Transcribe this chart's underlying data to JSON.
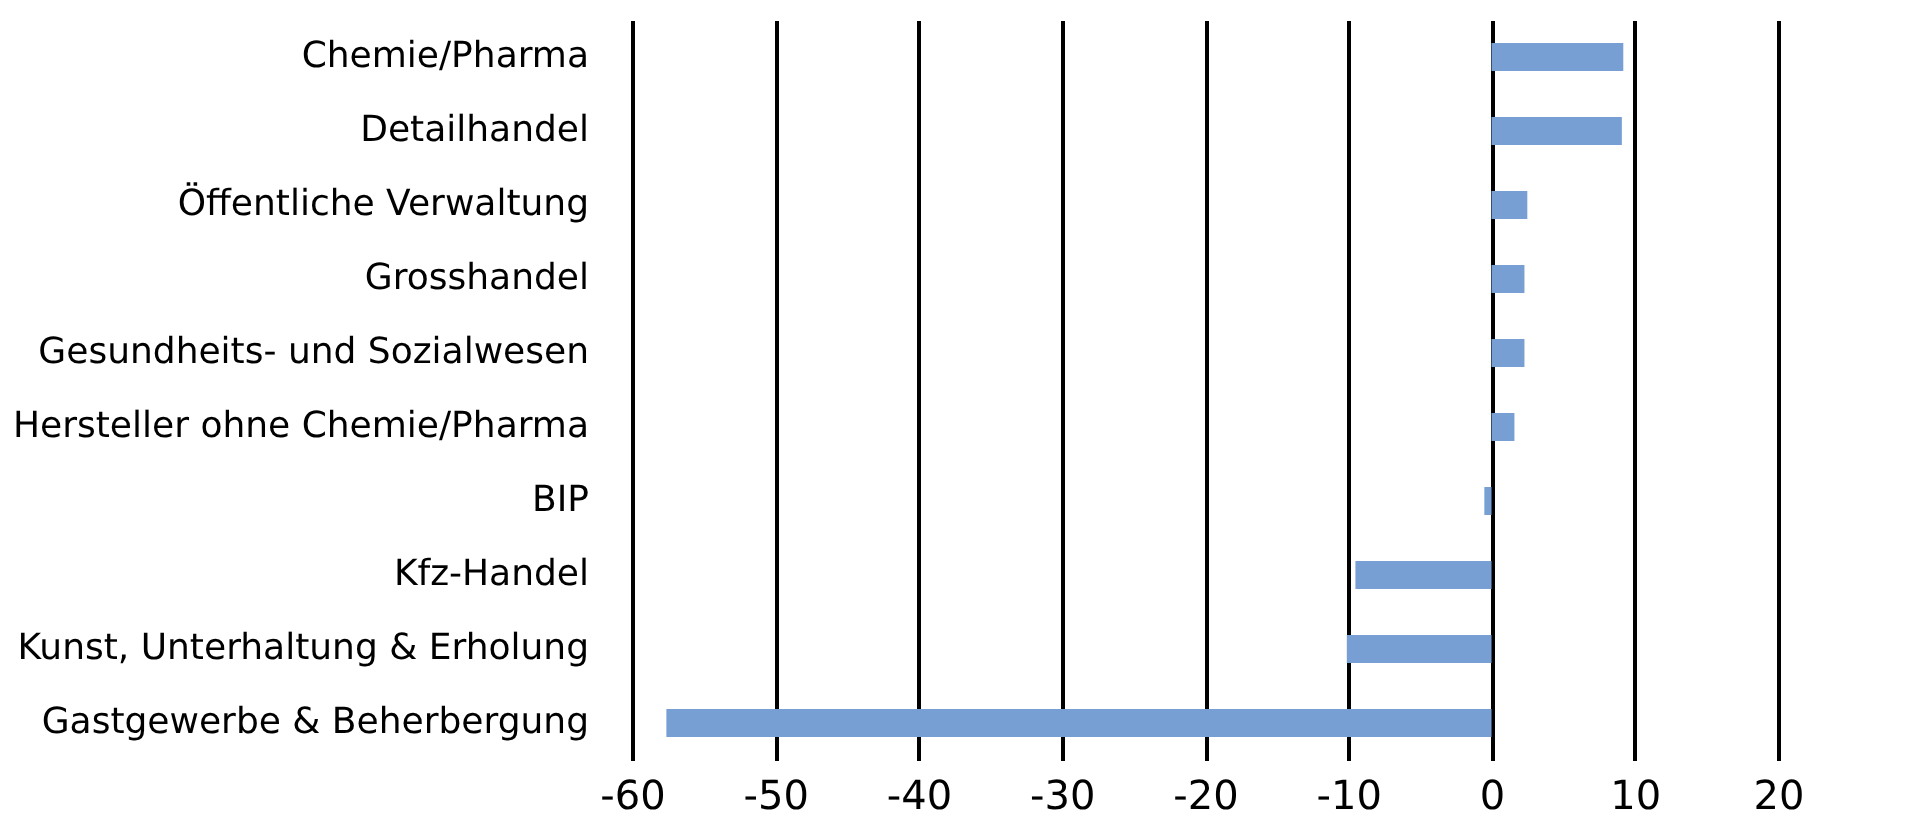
{
  "chart_data": {
    "type": "bar",
    "orientation": "horizontal",
    "categories": [
      "Chemie/Pharma",
      "Detailhandel",
      "Öffentliche Verwaltung",
      "Grosshandel",
      "Gesundheits- und Sozialwesen",
      "Hersteller ohne Chemie/Pharma",
      "BIP",
      "Kfz-Handel",
      "Kunst, Unterhaltung & Erholung",
      "Gastgewerbe & Beherbergung"
    ],
    "values": [
      9.2,
      9.1,
      2.5,
      2.3,
      2.3,
      1.6,
      -0.5,
      -9.5,
      -10.1,
      -57.6
    ],
    "color": "#779fd3",
    "xlim": [
      -60,
      20
    ],
    "xticks": [
      -60,
      -50,
      -40,
      -30,
      -20,
      -10,
      0,
      10,
      20
    ],
    "grid": "x"
  }
}
